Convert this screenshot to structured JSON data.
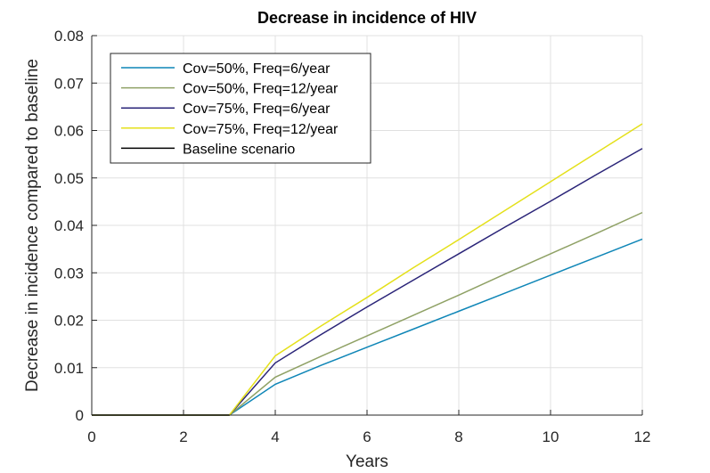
{
  "chart_data": {
    "type": "line",
    "title": "Decrease in incidence of HIV",
    "xlabel": "Years",
    "ylabel": "Decrease in incidence compared to baseline",
    "xlim": [
      0,
      12
    ],
    "ylim": [
      0,
      0.08
    ],
    "xticks": [
      0,
      2,
      4,
      6,
      8,
      10,
      12
    ],
    "xtick_labels": [
      "0",
      "2",
      "4",
      "6",
      "8",
      "10",
      "12"
    ],
    "yticks": [
      0,
      0.01,
      0.02,
      0.03,
      0.04,
      0.05,
      0.06,
      0.07,
      0.08
    ],
    "ytick_labels": [
      "0",
      "0.01",
      "0.02",
      "0.03",
      "0.04",
      "0.05",
      "0.06",
      "0.07",
      "0.08"
    ],
    "grid": true,
    "legend_position": "top-left",
    "series": [
      {
        "name": "Cov=50%, Freq=6/year",
        "color": "#0f86b7",
        "x": [
          0,
          1,
          2,
          3,
          4,
          5,
          6,
          7,
          8,
          9,
          10,
          11,
          12
        ],
        "y": [
          0,
          0,
          0,
          0,
          0.0065,
          0.0105,
          0.0143,
          0.0181,
          0.0219,
          0.0257,
          0.0295,
          0.0333,
          0.0371
        ]
      },
      {
        "name": "Cov=50%, Freq=12/year",
        "color": "#8fa165",
        "x": [
          0,
          1,
          2,
          3,
          4,
          5,
          6,
          7,
          8,
          9,
          10,
          11,
          12
        ],
        "y": [
          0,
          0,
          0,
          0,
          0.008,
          0.0124,
          0.0167,
          0.021,
          0.0253,
          0.0297,
          0.034,
          0.0383,
          0.0427
        ]
      },
      {
        "name": "Cov=75%, Freq=6/year",
        "color": "#2a2478",
        "x": [
          0,
          1,
          2,
          3,
          4,
          5,
          6,
          7,
          8,
          9,
          10,
          11,
          12
        ],
        "y": [
          0,
          0,
          0,
          0,
          0.011,
          0.017,
          0.0228,
          0.0284,
          0.034,
          0.0396,
          0.0451,
          0.0507,
          0.0562
        ]
      },
      {
        "name": "Cov=75%, Freq=12/year",
        "color": "#e4e01a",
        "x": [
          0,
          1,
          2,
          3,
          4,
          5,
          6,
          7,
          8,
          9,
          10,
          11,
          12
        ],
        "y": [
          0,
          0,
          0,
          0,
          0.0125,
          0.0188,
          0.0248,
          0.031,
          0.037,
          0.0431,
          0.0492,
          0.0553,
          0.0614
        ]
      },
      {
        "name": "Baseline scenario",
        "color": "#000000",
        "x": [
          0,
          1,
          2,
          3
        ],
        "y": [
          0,
          0,
          0,
          0
        ]
      }
    ]
  }
}
